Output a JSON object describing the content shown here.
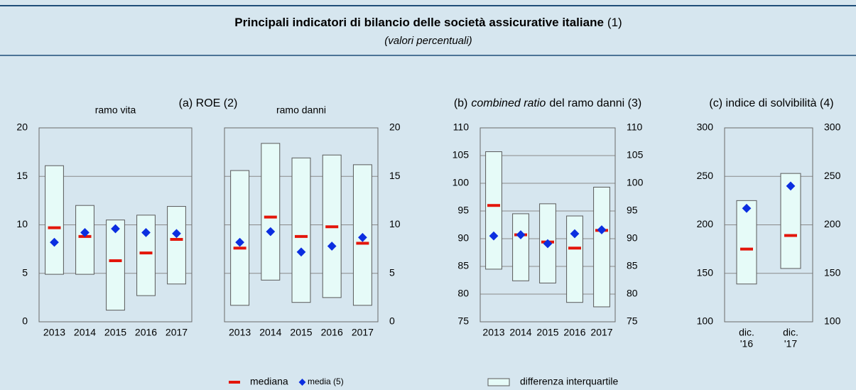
{
  "header": {
    "title": "Principali indicatori di bilancio delle società assicurative italiane",
    "title_note": "(1)",
    "subtitle": "(valori percentuali)"
  },
  "legend": [
    {
      "name": "mediana",
      "color": "#e3160b"
    },
    {
      "name": "media (5)",
      "color": "#0b2ee0"
    },
    {
      "name": "differenza interquartile",
      "color": "#e6fbf8"
    }
  ],
  "chart_data": [
    {
      "type": "box",
      "title": [
        "(a) ROE (2)"
      ],
      "subtitle": "ramo vita",
      "yaxis": "left",
      "grid": true,
      "categories": [
        "2013",
        "2014",
        "2015",
        "2016",
        "2017"
      ],
      "q1": [
        4.9,
        4.9,
        1.2,
        2.7,
        3.9
      ],
      "q3": [
        16.1,
        12.0,
        10.5,
        11.0,
        11.9
      ],
      "median": [
        9.7,
        8.8,
        6.3,
        7.1,
        8.5
      ],
      "mean": [
        8.2,
        9.2,
        9.6,
        9.2,
        9.1
      ],
      "ylim": [
        0,
        20
      ],
      "yticks": [
        0,
        5,
        10,
        15,
        20
      ]
    },
    {
      "type": "box",
      "subtitle": "ramo danni",
      "yaxis": "right",
      "grid": true,
      "categories": [
        "2013",
        "2014",
        "2015",
        "2016",
        "2017"
      ],
      "q1": [
        1.7,
        4.3,
        2.0,
        2.5,
        1.7
      ],
      "q3": [
        15.6,
        18.4,
        16.9,
        17.2,
        16.2
      ],
      "median": [
        7.6,
        10.8,
        8.8,
        9.8,
        8.1
      ],
      "mean": [
        8.2,
        9.3,
        7.2,
        7.8,
        8.7
      ],
      "ylim": [
        0,
        20
      ],
      "yticks": [
        0,
        5,
        10,
        15,
        20
      ]
    },
    {
      "type": "box",
      "title": [
        "(b)",
        "combined ratio",
        "del ramo danni (3)"
      ],
      "yaxis": "both",
      "grid": true,
      "categories": [
        "2013",
        "2014",
        "2015",
        "2016",
        "2017"
      ],
      "q1": [
        84.5,
        82.4,
        82.0,
        78.5,
        77.7
      ],
      "q3": [
        105.7,
        94.5,
        96.3,
        94.1,
        99.3
      ],
      "median": [
        96.0,
        90.7,
        89.4,
        88.3,
        91.5
      ],
      "mean": [
        90.5,
        90.7,
        89.1,
        90.9,
        91.6
      ],
      "ylim": [
        75,
        110
      ],
      "yticks": [
        75,
        80,
        85,
        90,
        95,
        100,
        105,
        110
      ]
    },
    {
      "type": "box",
      "title": [
        "(c) indice di solvibilità (4)"
      ],
      "yaxis": "both",
      "grid": true,
      "categories": [
        [
          "dic.",
          "'16"
        ],
        [
          "dic.",
          "'17"
        ]
      ],
      "q1": [
        139,
        155
      ],
      "q3": [
        225,
        253
      ],
      "median": [
        175,
        189
      ],
      "mean": [
        217,
        240
      ],
      "ylim": [
        100,
        300
      ],
      "yticks": [
        100,
        150,
        200,
        250,
        300
      ]
    }
  ]
}
